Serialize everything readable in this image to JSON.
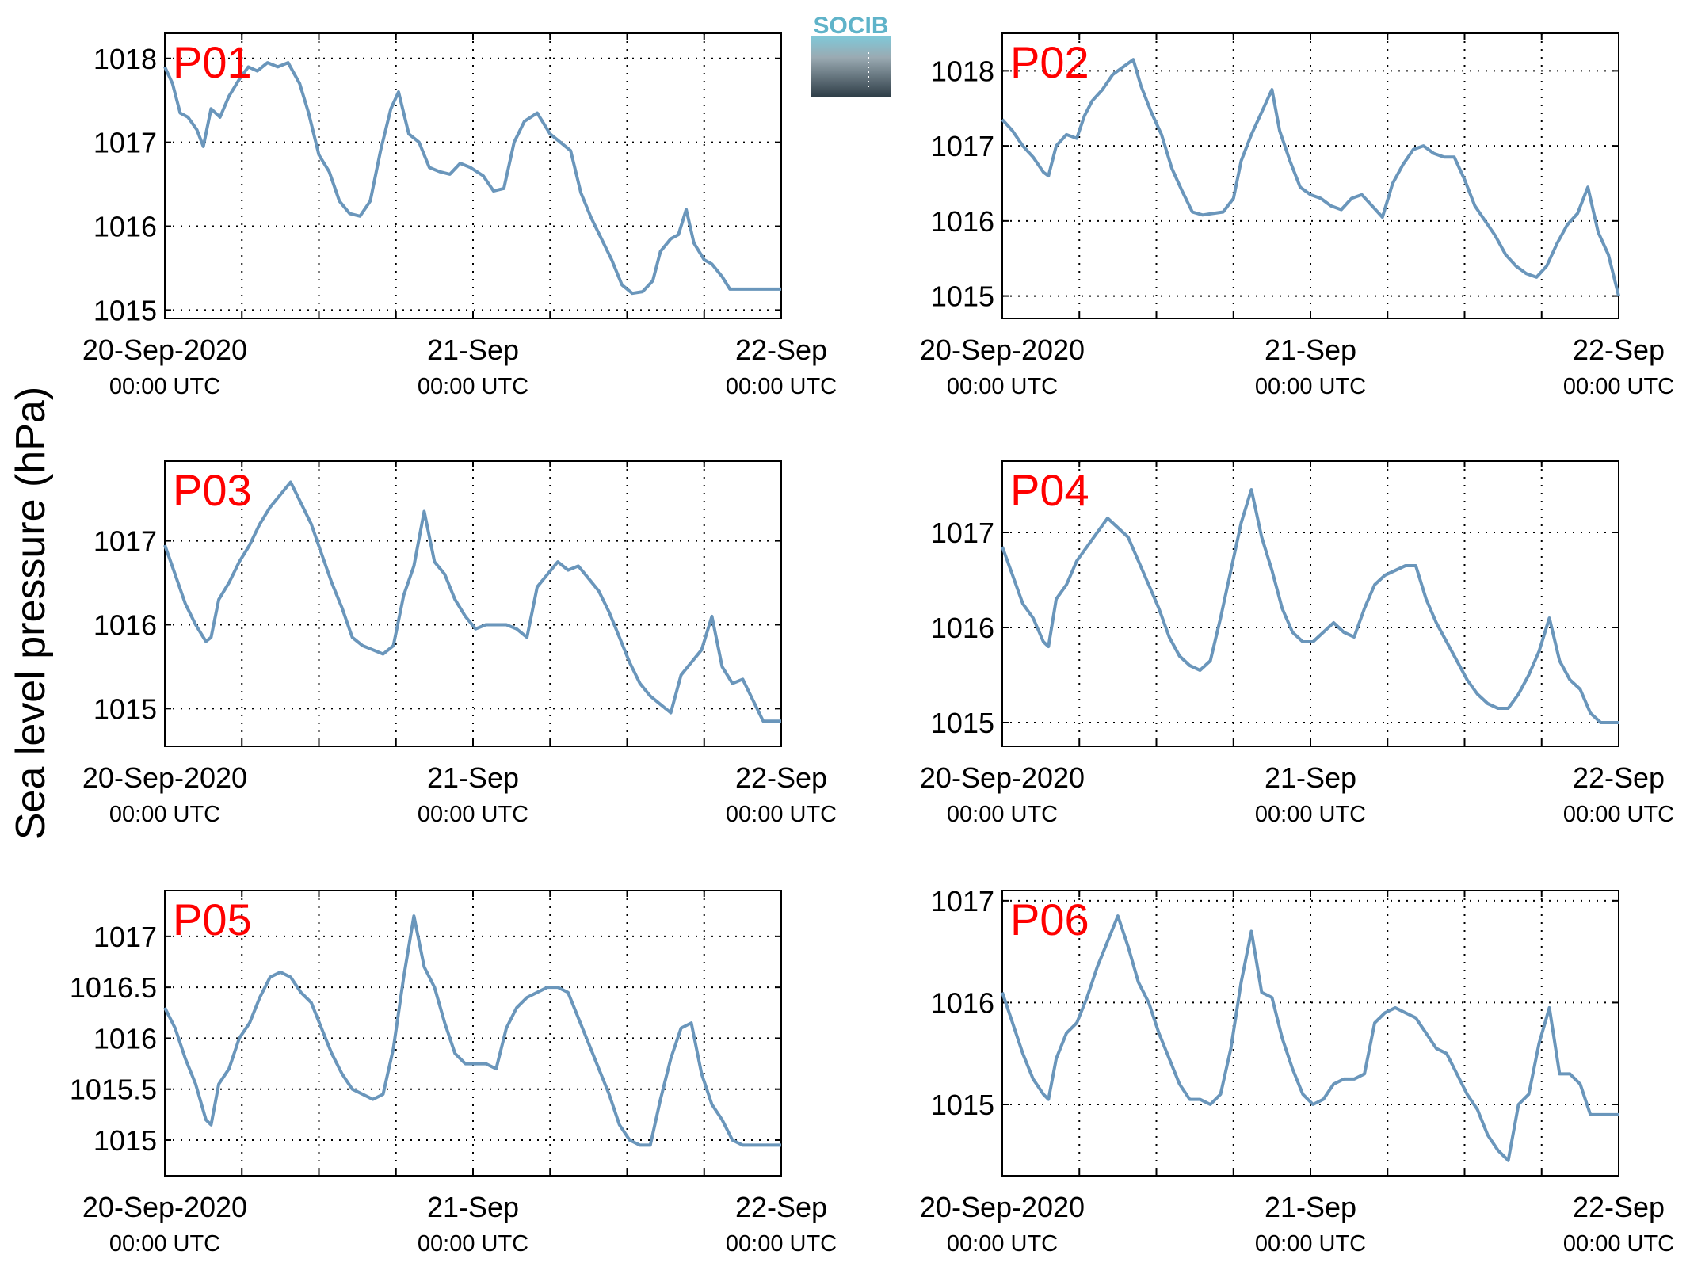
{
  "figure": {
    "ylabel": "Sea level pressure (hPa)",
    "logo": {
      "text": "SOCIB"
    },
    "colors": {
      "series": "#6a96bb",
      "panel_label": "#ff0000"
    }
  },
  "chart_data": [
    {
      "type": "line",
      "panel_label": "P01",
      "x_tick_labels": [
        {
          "main": "20-Sep-2020",
          "sub": "00:00 UTC"
        },
        {
          "main": "21-Sep",
          "sub": "00:00 UTC"
        },
        {
          "main": "22-Sep",
          "sub": "00:00 UTC"
        }
      ],
      "xlim_hours": [
        0,
        48
      ],
      "ylim": [
        1014.9,
        1018.3
      ],
      "yticks": [
        1015,
        1016,
        1017,
        1018
      ],
      "ytick_labels": [
        "1015",
        "1016",
        "1017",
        "1018"
      ],
      "grid": true,
      "series": [
        {
          "x": [
            0,
            0.6,
            1.2,
            1.8,
            2.5,
            3,
            3.6,
            4.3,
            5,
            5.8,
            6.5,
            7.2,
            8,
            8.8,
            9.6,
            10.5,
            11.2,
            12,
            12.8,
            13.6,
            14.4,
            15.2,
            16,
            16.8,
            17.6,
            18.2,
            19,
            19.8,
            20.6,
            21.4,
            22.2,
            23,
            23.8,
            24.8,
            25.6,
            26.4,
            27.2,
            28,
            29,
            30,
            30.8,
            31.6,
            32.4,
            33.2,
            34,
            34.8,
            35.6,
            36.4,
            37.2,
            38,
            38.6,
            39.4,
            40,
            40.6,
            41.2,
            42,
            42.6,
            43.4,
            44,
            44.8,
            45.4,
            46,
            46.6,
            47.2,
            48
          ],
          "y": [
            1017.9,
            1017.7,
            1017.35,
            1017.3,
            1017.15,
            1016.95,
            1017.4,
            1017.3,
            1017.55,
            1017.75,
            1017.9,
            1017.85,
            1017.95,
            1017.9,
            1017.95,
            1017.7,
            1017.35,
            1016.85,
            1016.65,
            1016.3,
            1016.15,
            1016.12,
            1016.3,
            1016.9,
            1017.4,
            1017.6,
            1017.1,
            1017.0,
            1016.7,
            1016.65,
            1016.62,
            1016.75,
            1016.7,
            1016.6,
            1016.42,
            1016.45,
            1017.0,
            1017.25,
            1017.35,
            1017.1,
            1017.0,
            1016.9,
            1016.4,
            1016.1,
            1015.85,
            1015.6,
            1015.3,
            1015.2,
            1015.22,
            1015.35,
            1015.7,
            1015.85,
            1015.9,
            1016.2,
            1015.8,
            1015.6,
            1015.55,
            1015.4,
            1015.25,
            1015.25,
            1015.25,
            1015.25,
            1015.25,
            1015.25,
            1015.25
          ]
        }
      ]
    },
    {
      "type": "line",
      "panel_label": "P02",
      "x_tick_labels": [
        {
          "main": "20-Sep-2020",
          "sub": "00:00 UTC"
        },
        {
          "main": "21-Sep",
          "sub": "00:00 UTC"
        },
        {
          "main": "22-Sep",
          "sub": "00:00 UTC"
        }
      ],
      "xlim_hours": [
        0,
        48
      ],
      "ylim": [
        1014.7,
        1018.5
      ],
      "yticks": [
        1015,
        1016,
        1017,
        1018
      ],
      "ytick_labels": [
        "1015",
        "1016",
        "1017",
        "1018"
      ],
      "grid": true,
      "series": [
        {
          "x": [
            0,
            0.8,
            1.6,
            2.4,
            3.2,
            3.6,
            4.2,
            5,
            5.8,
            6.4,
            7,
            7.8,
            8.6,
            9.4,
            10.2,
            10.8,
            11.6,
            12.4,
            13.2,
            14,
            14.8,
            15.6,
            16.4,
            17.2,
            18,
            18.6,
            19.4,
            20.2,
            21,
            21.6,
            22.4,
            23.2,
            24,
            24.8,
            25.6,
            26.4,
            27.2,
            28,
            28.8,
            29.6,
            30.4,
            31.2,
            32,
            32.8,
            33.6,
            34.4,
            35.2,
            36,
            36.8,
            37.6,
            38.4,
            39.2,
            40,
            40.8,
            41.6,
            42.4,
            43.2,
            44,
            44.8,
            45.6,
            46.4,
            47.2,
            48
          ],
          "y": [
            1017.35,
            1017.2,
            1017.0,
            1016.85,
            1016.65,
            1016.6,
            1017.0,
            1017.15,
            1017.1,
            1017.4,
            1017.6,
            1017.75,
            1017.95,
            1018.05,
            1018.15,
            1017.8,
            1017.45,
            1017.15,
            1016.7,
            1016.4,
            1016.12,
            1016.08,
            1016.1,
            1016.12,
            1016.3,
            1016.8,
            1017.15,
            1017.45,
            1017.75,
            1017.2,
            1016.8,
            1016.45,
            1016.35,
            1016.3,
            1016.2,
            1016.15,
            1016.3,
            1016.35,
            1016.2,
            1016.05,
            1016.5,
            1016.75,
            1016.95,
            1017.0,
            1016.9,
            1016.85,
            1016.85,
            1016.55,
            1016.2,
            1016.0,
            1015.8,
            1015.55,
            1015.4,
            1015.3,
            1015.25,
            1015.4,
            1015.7,
            1015.95,
            1016.1,
            1016.45,
            1015.85,
            1015.55,
            1015.0
          ]
        }
      ]
    },
    {
      "type": "line",
      "panel_label": "P03",
      "x_tick_labels": [
        {
          "main": "20-Sep-2020",
          "sub": "00:00 UTC"
        },
        {
          "main": "21-Sep",
          "sub": "00:00 UTC"
        },
        {
          "main": "22-Sep",
          "sub": "00:00 UTC"
        }
      ],
      "xlim_hours": [
        0,
        48
      ],
      "ylim": [
        1014.55,
        1017.95
      ],
      "yticks": [
        1015,
        1016,
        1017
      ],
      "ytick_labels": [
        "1015",
        "1016",
        "1017"
      ],
      "grid": true,
      "series": [
        {
          "x": [
            0,
            0.8,
            1.6,
            2.4,
            3.2,
            3.6,
            4.2,
            5,
            5.8,
            6.6,
            7.4,
            8.2,
            9,
            9.8,
            10.6,
            11.4,
            12.2,
            13,
            13.8,
            14.6,
            15.4,
            16.2,
            17,
            17.8,
            18.6,
            19.4,
            20.2,
            21,
            21.8,
            22.6,
            23.4,
            24.2,
            25,
            25.8,
            26.6,
            27.4,
            28.2,
            29,
            29.8,
            30.6,
            31.4,
            32.2,
            33,
            33.8,
            34.6,
            35.4,
            36.2,
            37,
            37.8,
            38.6,
            39.4,
            40.2,
            41,
            41.8,
            42.6,
            43.4,
            44.2,
            45,
            45.8,
            46.6,
            47.4,
            48
          ],
          "y": [
            1016.95,
            1016.6,
            1016.25,
            1016.0,
            1015.8,
            1015.85,
            1016.3,
            1016.5,
            1016.75,
            1016.95,
            1017.2,
            1017.4,
            1017.55,
            1017.7,
            1017.45,
            1017.2,
            1016.85,
            1016.5,
            1016.2,
            1015.85,
            1015.75,
            1015.7,
            1015.65,
            1015.75,
            1016.35,
            1016.7,
            1017.35,
            1016.75,
            1016.6,
            1016.3,
            1016.1,
            1015.95,
            1016.0,
            1016.0,
            1016.0,
            1015.95,
            1015.85,
            1016.45,
            1016.6,
            1016.75,
            1016.65,
            1016.7,
            1016.55,
            1016.4,
            1016.15,
            1015.85,
            1015.55,
            1015.3,
            1015.15,
            1015.05,
            1014.95,
            1015.4,
            1015.55,
            1015.7,
            1016.1,
            1015.5,
            1015.3,
            1015.35,
            1015.1,
            1014.85,
            1014.85,
            1014.85
          ]
        }
      ]
    },
    {
      "type": "line",
      "panel_label": "P04",
      "x_tick_labels": [
        {
          "main": "20-Sep-2020",
          "sub": "00:00 UTC"
        },
        {
          "main": "21-Sep",
          "sub": "00:00 UTC"
        },
        {
          "main": "22-Sep",
          "sub": "00:00 UTC"
        }
      ],
      "xlim_hours": [
        0,
        48
      ],
      "ylim": [
        1014.75,
        1017.75
      ],
      "yticks": [
        1015,
        1016,
        1017
      ],
      "ytick_labels": [
        "1015",
        "1016",
        "1017"
      ],
      "grid": true,
      "series": [
        {
          "x": [
            0,
            0.8,
            1.6,
            2.4,
            3.2,
            3.6,
            4.2,
            5,
            5.8,
            6.6,
            7.4,
            8.2,
            9,
            9.8,
            10.6,
            11.4,
            12.2,
            13,
            13.8,
            14.6,
            15.4,
            16.2,
            17,
            17.8,
            18.6,
            19.4,
            20.2,
            21,
            21.8,
            22.6,
            23.4,
            24.2,
            25,
            25.8,
            26.6,
            27.4,
            28.2,
            29,
            29.8,
            30.6,
            31.4,
            32.2,
            33,
            33.8,
            34.6,
            35.4,
            36.2,
            37,
            37.8,
            38.6,
            39.4,
            40.2,
            41,
            41.8,
            42.6,
            43.4,
            44.2,
            45,
            45.8,
            46.6,
            47.4,
            48
          ],
          "y": [
            1016.85,
            1016.55,
            1016.25,
            1016.1,
            1015.85,
            1015.8,
            1016.3,
            1016.45,
            1016.7,
            1016.85,
            1017.0,
            1017.15,
            1017.05,
            1016.95,
            1016.7,
            1016.45,
            1016.2,
            1015.9,
            1015.7,
            1015.6,
            1015.55,
            1015.65,
            1016.1,
            1016.6,
            1017.1,
            1017.45,
            1016.95,
            1016.6,
            1016.2,
            1015.95,
            1015.85,
            1015.85,
            1015.95,
            1016.05,
            1015.95,
            1015.9,
            1016.2,
            1016.45,
            1016.55,
            1016.6,
            1016.65,
            1016.65,
            1016.3,
            1016.05,
            1015.85,
            1015.65,
            1015.45,
            1015.3,
            1015.2,
            1015.15,
            1015.15,
            1015.3,
            1015.5,
            1015.75,
            1016.1,
            1015.65,
            1015.45,
            1015.35,
            1015.1,
            1015.0,
            1015.0,
            1015.0
          ]
        }
      ]
    },
    {
      "type": "line",
      "panel_label": "P05",
      "x_tick_labels": [
        {
          "main": "20-Sep-2020",
          "sub": "00:00 UTC"
        },
        {
          "main": "21-Sep",
          "sub": "00:00 UTC"
        },
        {
          "main": "22-Sep",
          "sub": "00:00 UTC"
        }
      ],
      "xlim_hours": [
        0,
        48
      ],
      "ylim": [
        1014.65,
        1017.45
      ],
      "yticks": [
        1015,
        1015.5,
        1016,
        1016.5,
        1017
      ],
      "ytick_labels": [
        "1015",
        "1015.5",
        "1016",
        "1016.5",
        "1017"
      ],
      "grid": true,
      "series": [
        {
          "x": [
            0,
            0.8,
            1.6,
            2.4,
            3.2,
            3.6,
            4.2,
            5,
            5.8,
            6.6,
            7.4,
            8.2,
            9,
            9.8,
            10.6,
            11.4,
            12.2,
            13,
            13.8,
            14.6,
            15.4,
            16.2,
            17,
            17.8,
            18.6,
            19.4,
            20.2,
            21,
            21.8,
            22.6,
            23.4,
            24.2,
            25,
            25.8,
            26.6,
            27.4,
            28.2,
            29,
            29.8,
            30.6,
            31.4,
            32.2,
            33,
            33.8,
            34.6,
            35.4,
            36.2,
            37,
            37.8,
            38.6,
            39.4,
            40.2,
            41,
            41.8,
            42.6,
            43.4,
            44.2,
            45,
            45.8,
            46.6,
            47.4,
            48
          ],
          "y": [
            1016.3,
            1016.1,
            1015.8,
            1015.55,
            1015.2,
            1015.15,
            1015.55,
            1015.7,
            1016.0,
            1016.15,
            1016.4,
            1016.6,
            1016.65,
            1016.6,
            1016.45,
            1016.35,
            1016.1,
            1015.85,
            1015.65,
            1015.5,
            1015.45,
            1015.4,
            1015.45,
            1015.9,
            1016.6,
            1017.2,
            1016.7,
            1016.5,
            1016.15,
            1015.85,
            1015.75,
            1015.75,
            1015.75,
            1015.7,
            1016.1,
            1016.3,
            1016.4,
            1016.45,
            1016.5,
            1016.5,
            1016.45,
            1016.2,
            1015.95,
            1015.7,
            1015.45,
            1015.15,
            1015.0,
            1014.95,
            1014.95,
            1015.4,
            1015.8,
            1016.1,
            1016.15,
            1015.65,
            1015.35,
            1015.2,
            1015.0,
            1014.95,
            1014.95,
            1014.95,
            1014.95,
            1014.95
          ]
        }
      ]
    },
    {
      "type": "line",
      "panel_label": "P06",
      "x_tick_labels": [
        {
          "main": "20-Sep-2020",
          "sub": "00:00 UTC"
        },
        {
          "main": "21-Sep",
          "sub": "00:00 UTC"
        },
        {
          "main": "22-Sep",
          "sub": "00:00 UTC"
        }
      ],
      "xlim_hours": [
        0,
        48
      ],
      "ylim": [
        1014.3,
        1017.1
      ],
      "yticks": [
        1015,
        1016,
        1017
      ],
      "ytick_labels": [
        "1015",
        "1016",
        "1017"
      ],
      "grid": true,
      "series": [
        {
          "x": [
            0,
            0.8,
            1.6,
            2.4,
            3.2,
            3.6,
            4.2,
            5,
            5.8,
            6.6,
            7.4,
            8.2,
            9,
            9.8,
            10.6,
            11.4,
            12.2,
            13,
            13.8,
            14.6,
            15.4,
            16.2,
            17,
            17.8,
            18.6,
            19.4,
            20.2,
            21,
            21.8,
            22.6,
            23.4,
            24.2,
            25,
            25.8,
            26.6,
            27.4,
            28.2,
            29,
            29.8,
            30.6,
            31.4,
            32.2,
            33,
            33.8,
            34.6,
            35.4,
            36.2,
            37,
            37.8,
            38.6,
            39.4,
            40.2,
            41,
            41.8,
            42.6,
            43.4,
            44.2,
            45,
            45.8,
            46.6,
            47.4,
            48
          ],
          "y": [
            1016.1,
            1015.8,
            1015.5,
            1015.25,
            1015.1,
            1015.05,
            1015.45,
            1015.7,
            1015.8,
            1016.05,
            1016.35,
            1016.6,
            1016.85,
            1016.55,
            1016.2,
            1016.0,
            1015.7,
            1015.45,
            1015.2,
            1015.05,
            1015.05,
            1015.0,
            1015.1,
            1015.55,
            1016.2,
            1016.7,
            1016.1,
            1016.05,
            1015.65,
            1015.35,
            1015.1,
            1015.0,
            1015.05,
            1015.2,
            1015.25,
            1015.25,
            1015.3,
            1015.8,
            1015.9,
            1015.95,
            1015.9,
            1015.85,
            1015.7,
            1015.55,
            1015.5,
            1015.3,
            1015.1,
            1014.95,
            1014.7,
            1014.55,
            1014.45,
            1015.0,
            1015.1,
            1015.6,
            1015.95,
            1015.3,
            1015.3,
            1015.2,
            1014.9,
            1014.9,
            1014.9,
            1014.9
          ]
        }
      ]
    }
  ]
}
